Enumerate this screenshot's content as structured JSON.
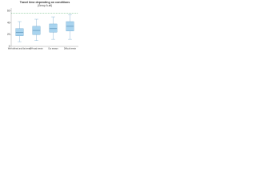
{
  "chart_data": {
    "type": "box",
    "title": "Travel time depending on conditions",
    "subtitle": "(Group A-all)",
    "categories": [
      "Well-defined and flat terrain",
      "Off-road terrain",
      "Dry season",
      "Difficult terrain"
    ],
    "series": [
      {
        "color": "#a9d4ef",
        "min": [
          8,
          10,
          12,
          12
        ],
        "q1": [
          18,
          20,
          24,
          26
        ],
        "median": [
          24,
          27,
          30,
          34
        ],
        "q3": [
          30,
          34,
          38,
          42
        ],
        "max": [
          42,
          46,
          50,
          54
        ]
      }
    ],
    "reference_line": 56,
    "reference_color": "#3aa655",
    "ylim": [
      0,
      65
    ],
    "yticks": [
      0,
      20,
      40,
      60
    ],
    "grid": false
  }
}
